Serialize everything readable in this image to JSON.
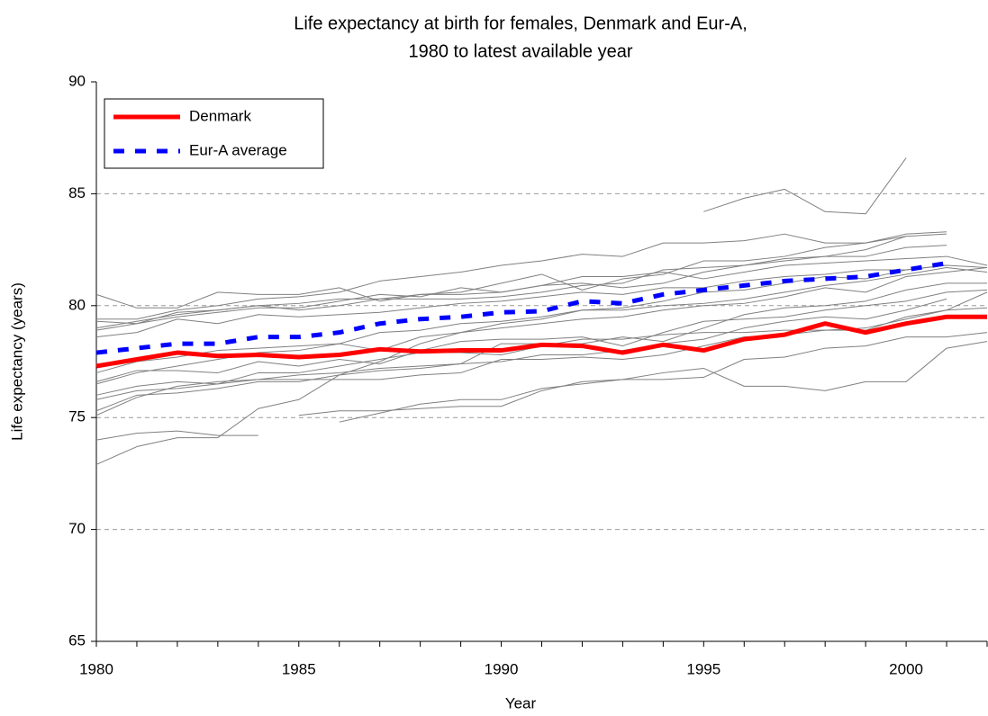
{
  "chart_data": {
    "type": "line",
    "title": [
      "Life expectancy at birth for females, Denmark and Eur-A,",
      "1980 to latest available year"
    ],
    "x_label": "Year",
    "y_label": "Life expectancy (years)",
    "x": [
      1980,
      1981,
      1982,
      1983,
      1984,
      1985,
      1986,
      1987,
      1988,
      1989,
      1990,
      1991,
      1992,
      1993,
      1994,
      1995,
      1996,
      1997,
      1998,
      1999,
      2000,
      2001,
      2002
    ],
    "xlim": [
      1980,
      2002
    ],
    "xticks": [
      1980,
      1985,
      1990,
      1995,
      2000
    ],
    "ylim": [
      65,
      90
    ],
    "yticks": [
      65,
      70,
      75,
      80,
      85,
      90
    ],
    "grid": true,
    "legend": "top-left",
    "series": [
      {
        "color": "#808080",
        "values": [
          null,
          null,
          null,
          null,
          null,
          null,
          null,
          null,
          null,
          null,
          null,
          null,
          null,
          null,
          null,
          84.2,
          84.8,
          85.2,
          84.2,
          84.1,
          86.6,
          null,
          null
        ]
      },
      {
        "color": "#808080",
        "values": [
          74.0,
          74.3,
          74.4,
          74.2,
          74.2,
          null,
          null,
          null,
          null,
          null,
          null,
          null,
          null,
          null,
          null,
          null,
          null,
          null,
          null,
          null,
          null,
          null,
          null
        ]
      },
      {
        "color": "#808080",
        "values": [
          72.9,
          73.7,
          74.1,
          74.1,
          75.4,
          75.8,
          76.9,
          77.5,
          78.3,
          78.8,
          79.2,
          79.4,
          79.8,
          79.9,
          80.2,
          80.6,
          80.7,
          81.0,
          81.3,
          81.2,
          81.6,
          81.8,
          null
        ]
      },
      {
        "color": "#808080",
        "values": [
          80.5,
          79.9,
          79.9,
          80.6,
          80.5,
          80.5,
          80.8,
          80.2,
          80.5,
          80.6,
          81.0,
          81.4,
          80.7,
          81.2,
          81.4,
          82.0,
          82.0,
          82.2,
          82.6,
          82.8,
          83.2,
          83.3,
          null
        ]
      },
      {
        "color": "#808080",
        "values": [
          79.4,
          79.4,
          79.8,
          80.0,
          80.3,
          80.4,
          80.6,
          81.1,
          81.3,
          81.5,
          81.8,
          82.0,
          82.3,
          82.2,
          82.8,
          82.8,
          82.9,
          83.2,
          82.8,
          82.8,
          83.1,
          83.2,
          null
        ]
      },
      {
        "color": "#808080",
        "values": [
          79.0,
          79.3,
          79.6,
          79.8,
          80.0,
          79.8,
          80.0,
          80.3,
          80.3,
          80.3,
          80.4,
          80.6,
          80.9,
          81.0,
          81.6,
          81.7,
          81.8,
          82.0,
          82.2,
          82.2,
          82.6,
          82.7,
          null
        ]
      },
      {
        "color": "#808080",
        "values": [
          78.9,
          79.2,
          79.5,
          79.7,
          79.9,
          79.9,
          80.2,
          80.5,
          80.4,
          80.8,
          80.6,
          80.9,
          81.3,
          81.3,
          81.5,
          81.2,
          81.5,
          81.8,
          81.9,
          82.0,
          82.1,
          82.2,
          81.8
        ]
      },
      {
        "color": "#808080",
        "values": [
          78.6,
          78.8,
          79.4,
          79.2,
          79.6,
          79.5,
          79.6,
          79.7,
          79.9,
          80.1,
          80.2,
          80.4,
          80.6,
          80.5,
          80.8,
          80.8,
          81.1,
          81.3,
          81.4,
          81.6,
          81.6,
          81.8,
          81.7
        ]
      },
      {
        "color": "#808080",
        "values": [
          76.5,
          77.0,
          77.3,
          77.6,
          77.9,
          78.0,
          78.3,
          78.8,
          78.9,
          79.2,
          79.3,
          79.5,
          79.8,
          79.8,
          80.0,
          80.1,
          80.3,
          80.6,
          80.9,
          81.1,
          81.4,
          81.7,
          81.5
        ]
      },
      {
        "color": "#808080",
        "values": [
          76.6,
          77.1,
          77.1,
          77.0,
          77.5,
          77.3,
          77.6,
          77.4,
          78.0,
          78.4,
          78.5,
          78.5,
          78.6,
          78.2,
          78.8,
          79.3,
          79.4,
          79.5,
          79.8,
          80.0,
          80.2,
          80.6,
          80.7
        ]
      },
      {
        "color": "#808080",
        "values": [
          75.3,
          76.0,
          76.1,
          76.3,
          76.6,
          76.6,
          76.9,
          77.1,
          77.2,
          77.4,
          77.5,
          77.8,
          77.8,
          78.0,
          78.3,
          78.5,
          79.0,
          79.3,
          79.5,
          79.4,
          79.8,
          80.3,
          null
        ]
      },
      {
        "color": "#808080",
        "values": [
          75.8,
          76.2,
          76.3,
          76.5,
          77.0,
          77.0,
          77.3,
          77.6,
          77.9,
          77.9,
          77.8,
          78.2,
          78.5,
          78.5,
          78.7,
          78.8,
          78.8,
          78.9,
          78.9,
          79.0,
          79.4,
          79.8,
          80.6
        ]
      },
      {
        "color": "#808080",
        "values": [
          75.1,
          75.9,
          76.4,
          76.6,
          76.7,
          76.9,
          77.0,
          77.2,
          77.3,
          77.4,
          78.3,
          78.3,
          78.3,
          78.6,
          78.4,
          79.0,
          79.6,
          79.9,
          80.0,
          80.2,
          80.7,
          81.0,
          81.0
        ]
      },
      {
        "color": "#808080",
        "values": [
          76.0,
          76.4,
          76.6,
          76.5,
          76.7,
          76.7,
          76.7,
          76.7,
          76.9,
          77.0,
          77.6,
          77.6,
          77.7,
          77.6,
          77.8,
          78.2,
          78.6,
          78.7,
          78.9,
          78.9,
          79.5,
          79.8,
          79.9
        ]
      },
      {
        "color": "#808080",
        "values": [
          null,
          null,
          null,
          null,
          null,
          75.1,
          75.3,
          75.3,
          75.4,
          75.5,
          75.5,
          76.2,
          76.6,
          76.7,
          77.0,
          77.2,
          76.4,
          76.4,
          76.2,
          76.6,
          76.6,
          78.1,
          78.4
        ]
      },
      {
        "color": "#808080",
        "values": [
          null,
          null,
          null,
          null,
          null,
          null,
          74.8,
          75.2,
          75.6,
          75.8,
          75.8,
          76.3,
          76.5,
          76.7,
          76.7,
          76.8,
          77.6,
          77.7,
          78.1,
          78.2,
          78.6,
          78.6,
          78.8
        ]
      },
      {
        "color": "#808080",
        "values": [
          79.3,
          79.2,
          79.7,
          79.8,
          80.0,
          80.1,
          80.3,
          80.3,
          80.5,
          80.5,
          80.6,
          80.9,
          81.0,
          80.8,
          81.0,
          81.5,
          81.8,
          82.1,
          82.2,
          82.5,
          83.1,
          null,
          null
        ]
      },
      {
        "color": "#808080",
        "values": [
          77.0,
          77.5,
          77.7,
          78.0,
          78.1,
          78.2,
          78.3,
          78.0,
          78.6,
          78.8,
          79.0,
          79.2,
          79.4,
          79.5,
          79.8,
          80.0,
          80.1,
          80.4,
          80.8,
          80.6,
          81.3,
          81.5,
          81.7
        ]
      },
      {
        "name": "Denmark",
        "color": "#ff0000",
        "values": [
          77.3,
          77.6,
          77.9,
          77.75,
          77.8,
          77.7,
          77.8,
          78.05,
          77.95,
          78.0,
          78.0,
          78.25,
          78.2,
          77.9,
          78.25,
          78.0,
          78.5,
          78.7,
          79.2,
          78.8,
          79.2,
          79.5,
          79.5
        ]
      },
      {
        "name": "Eur-A average",
        "color": "#0000ff",
        "style": "dashed",
        "values": [
          77.9,
          78.1,
          78.3,
          78.3,
          78.6,
          78.6,
          78.8,
          79.2,
          79.4,
          79.5,
          79.7,
          79.75,
          80.2,
          80.1,
          80.5,
          80.7,
          80.9,
          81.1,
          81.2,
          81.3,
          81.6,
          81.9,
          null
        ]
      }
    ]
  }
}
